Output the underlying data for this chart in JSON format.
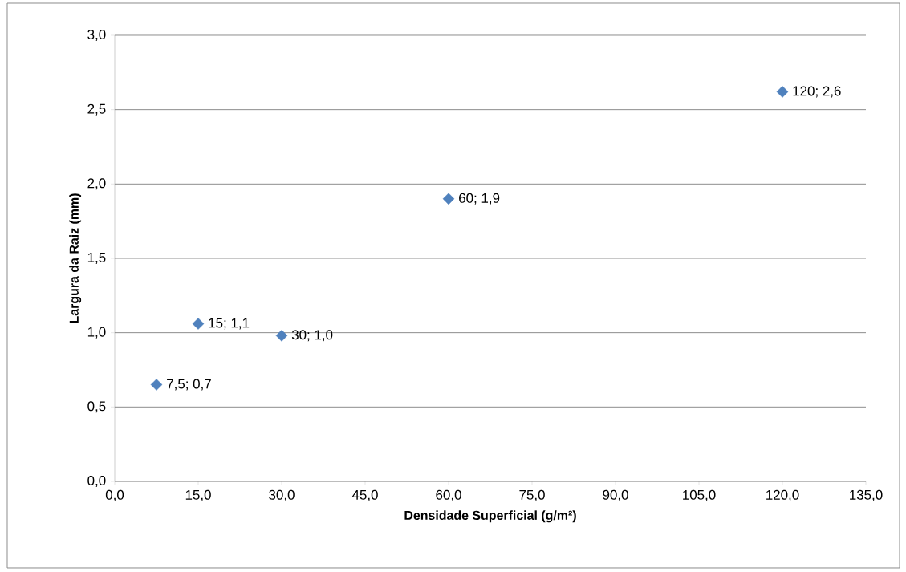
{
  "chart_data": {
    "type": "scatter",
    "xlabel": "Densidade Superficial (g/m²)",
    "ylabel": "Largura da Raiz (mm)",
    "x": [
      7.5,
      15,
      30,
      60,
      120
    ],
    "values": [
      0.65,
      1.06,
      0.98,
      1.9,
      2.62
    ],
    "value_labels": [
      "7,5; 0,7",
      "15; 1,1",
      "30; 1,0",
      "60; 1,9",
      "120; 2,6"
    ],
    "color": "#4f81bd",
    "marker": "diamond",
    "grid": "y",
    "xlim": [
      0,
      135
    ],
    "ylim": [
      0,
      3
    ],
    "xticks": [
      {
        "value": 0,
        "label": "0,0"
      },
      {
        "value": 15,
        "label": "15,0"
      },
      {
        "value": 30,
        "label": "30,0"
      },
      {
        "value": 45,
        "label": "45,0"
      },
      {
        "value": 60,
        "label": "60,0"
      },
      {
        "value": 75,
        "label": "75,0"
      },
      {
        "value": 90,
        "label": "90,0"
      },
      {
        "value": 105,
        "label": "105,0"
      },
      {
        "value": 120,
        "label": "120,0"
      },
      {
        "value": 135,
        "label": "135,0"
      }
    ],
    "yticks": [
      {
        "value": 0,
        "label": "0,0"
      },
      {
        "value": 0.5,
        "label": "0,5"
      },
      {
        "value": 1,
        "label": "1,0"
      },
      {
        "value": 1.5,
        "label": "1,5"
      },
      {
        "value": 2,
        "label": "2,0"
      },
      {
        "value": 2.5,
        "label": "2,5"
      },
      {
        "value": 3,
        "label": "3,0"
      }
    ]
  }
}
